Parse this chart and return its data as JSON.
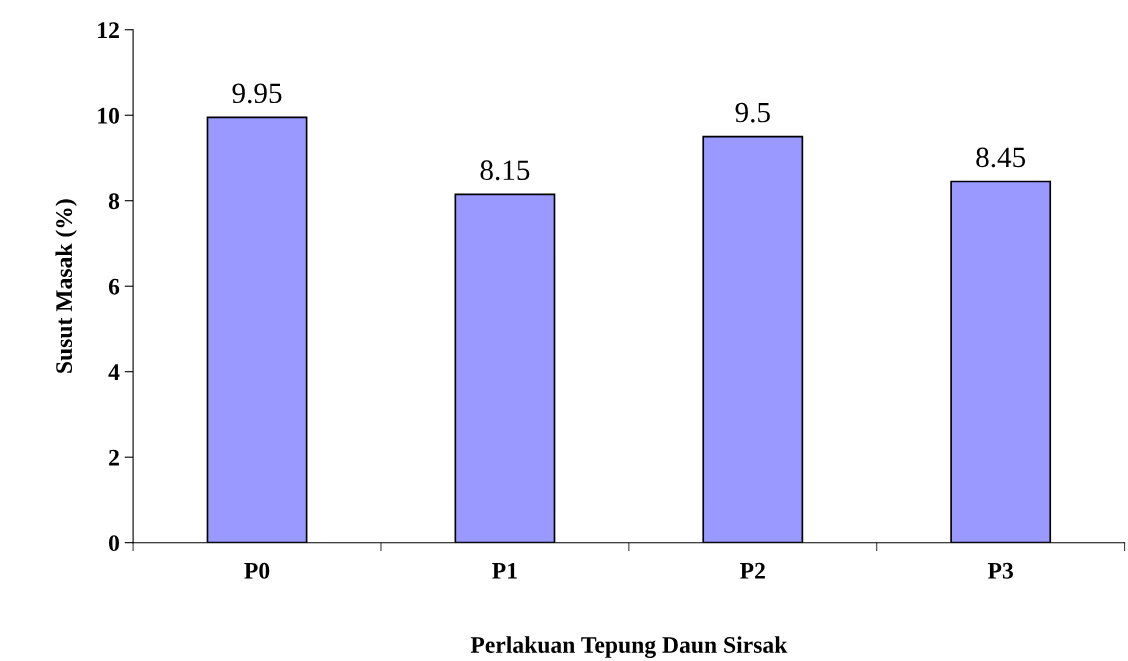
{
  "chart_data": {
    "type": "bar",
    "xlabel": "Perlakuan Tepung Daun Sirsak",
    "ylabel": "Susut Masak (%)",
    "categories": [
      "P0",
      "P1",
      "P2",
      "P3"
    ],
    "values": [
      9.95,
      8.15,
      9.5,
      8.45
    ],
    "color": "#9999ff",
    "ylim": [
      0,
      12
    ],
    "yticks": [
      0,
      2,
      4,
      6,
      8,
      10,
      12
    ],
    "grid": false,
    "legend": false,
    "data_labels": true
  }
}
